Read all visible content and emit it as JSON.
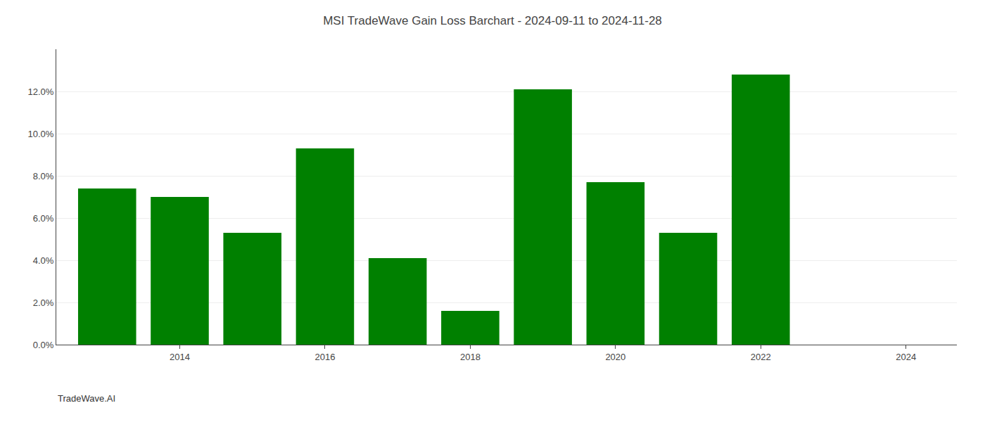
{
  "chart_data": {
    "type": "bar",
    "title": "MSI TradeWave Gain Loss Barchart - 2024-09-11 to 2024-11-28",
    "annotations": [
      {
        "text": "TradeWave.AI"
      }
    ],
    "x": [
      2013,
      2014,
      2015,
      2016,
      2017,
      2018,
      2019,
      2020,
      2021,
      2022,
      2023
    ],
    "values": [
      0.074,
      0.07,
      0.053,
      0.093,
      0.041,
      0.016,
      0.121,
      0.077,
      0.053,
      0.128,
      0.0
    ],
    "color": "#008000",
    "xlim": [
      2012.3,
      2024.7
    ],
    "xticks": [
      2014,
      2016,
      2018,
      2020,
      2022,
      2024
    ],
    "ylim": [
      0,
      0.14
    ],
    "yticks": [
      {
        "value": 0.0,
        "label": "0.0%"
      },
      {
        "value": 0.02,
        "label": "2.0%"
      },
      {
        "value": 0.04,
        "label": "4.0%"
      },
      {
        "value": 0.06,
        "label": "6.0%"
      },
      {
        "value": 0.08,
        "label": "8.0%"
      },
      {
        "value": 0.1,
        "label": "10.0%"
      },
      {
        "value": 0.12,
        "label": "12.0%"
      }
    ],
    "grid": true
  }
}
